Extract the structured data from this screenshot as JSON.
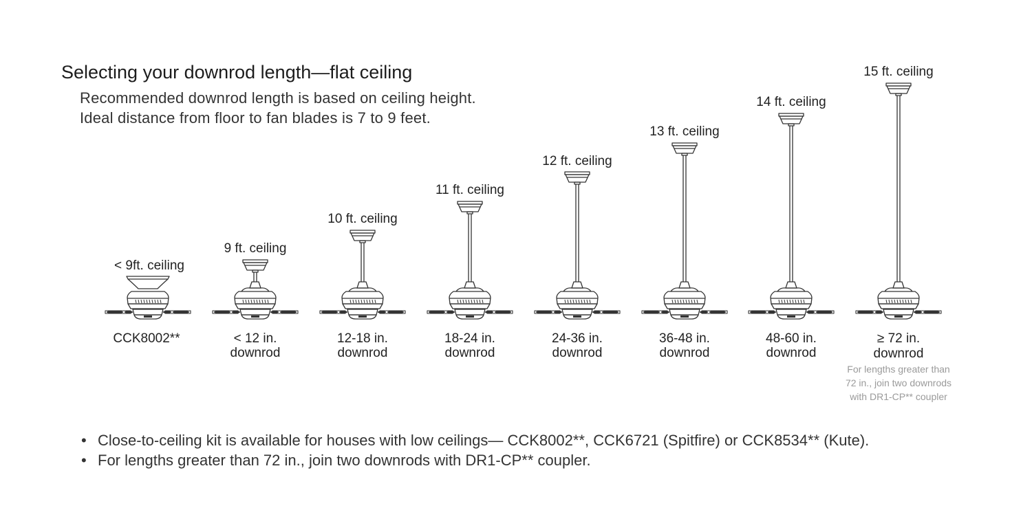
{
  "title": "Selecting your downrod length—flat ceiling",
  "intro": [
    "Recommended downrod length is based on ceiling height.",
    "Ideal distance from floor to fan blades is 7 to 9 feet."
  ],
  "fans": [
    {
      "ceiling": "< 9ft. ceiling",
      "rod_line1": "CCK8002**",
      "rod_line2": "",
      "kind": "close-to-ceiling"
    },
    {
      "ceiling": "9 ft. ceiling",
      "rod_line1": "< 12 in.",
      "rod_line2": "downrod",
      "kind": "downrod"
    },
    {
      "ceiling": "10 ft. ceiling",
      "rod_line1": "12-18 in.",
      "rod_line2": "downrod",
      "kind": "downrod"
    },
    {
      "ceiling": "11 ft. ceiling",
      "rod_line1": "18-24 in.",
      "rod_line2": "downrod",
      "kind": "downrod"
    },
    {
      "ceiling": "12 ft. ceiling",
      "rod_line1": "24-36 in.",
      "rod_line2": "downrod",
      "kind": "downrod"
    },
    {
      "ceiling": "13 ft. ceiling",
      "rod_line1": "36-48 in.",
      "rod_line2": "downrod",
      "kind": "downrod"
    },
    {
      "ceiling": "14 ft. ceiling",
      "rod_line1": "48-60 in.",
      "rod_line2": "downrod",
      "kind": "downrod"
    },
    {
      "ceiling": "15 ft. ceiling",
      "rod_line1": "≥ 72 in.",
      "rod_line2": "downrod",
      "kind": "downrod"
    }
  ],
  "coupler_note": [
    "For lengths greater than",
    "72 in., join two downrods",
    "with DR1-CP** coupler"
  ],
  "bullets": [
    "Close-to-ceiling kit is available for houses with low ceilings— CCK8002**, CCK6721 (Spitfire) or CCK8534** (Kute).",
    "For lengths greater than 72 in., join two downrods with DR1-CP** coupler."
  ],
  "colors": {
    "line": "#333333",
    "note": "#9a9a9a"
  }
}
